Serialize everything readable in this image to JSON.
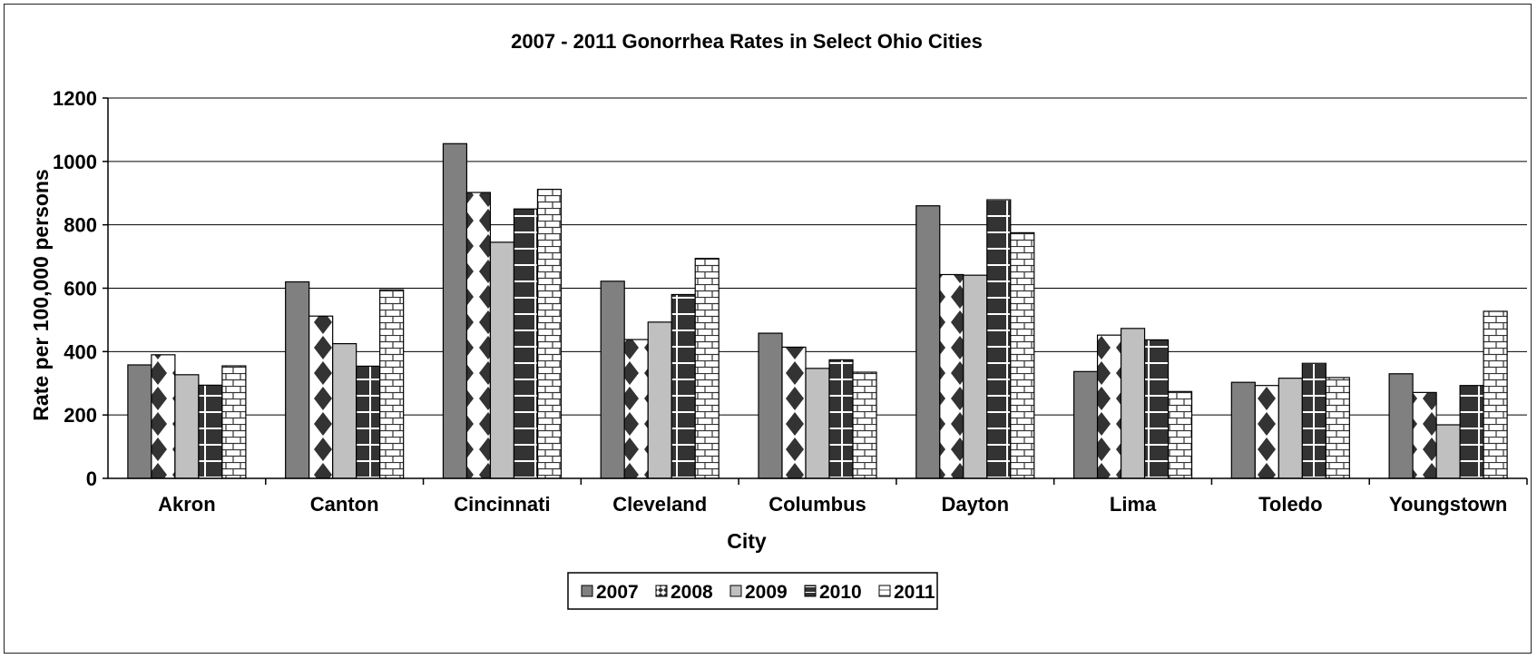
{
  "chart_data": {
    "type": "bar",
    "title": "2007 - 2011 Gonorrhea Rates in Select Ohio Cities",
    "xlabel": "City",
    "ylabel": "Rate per 100,000 persons",
    "ylim": [
      0,
      1200
    ],
    "yticks": [
      "0",
      "200",
      "400",
      "600",
      "800",
      "1000",
      "1200"
    ],
    "grid": true,
    "legend_position": "bottom",
    "categories": [
      "Akron",
      "Canton",
      "Cincinnati",
      "Cleveland",
      "Columbus",
      "Dayton",
      "Lima",
      "Toledo",
      "Youngstown"
    ],
    "series": [
      {
        "name": "2007",
        "pattern": "solid-dark",
        "color": "#808080",
        "values": [
          358,
          620,
          1056,
          622,
          458,
          860,
          337,
          303,
          330
        ]
      },
      {
        "name": "2008",
        "pattern": "diamonds",
        "color": "#333333",
        "values": [
          390,
          512,
          902,
          438,
          414,
          643,
          452,
          293,
          271
        ]
      },
      {
        "name": "2009",
        "pattern": "solid-light",
        "color": "#c0c0c0",
        "values": [
          327,
          425,
          745,
          493,
          347,
          641,
          473,
          316,
          169
        ]
      },
      {
        "name": "2010",
        "pattern": "dark-squares",
        "color": "#333333",
        "values": [
          294,
          354,
          850,
          580,
          374,
          879,
          437,
          363,
          293
        ]
      },
      {
        "name": "2011",
        "pattern": "bricks",
        "color": "#ffffff",
        "values": [
          355,
          595,
          912,
          694,
          335,
          775,
          274,
          318,
          527
        ]
      }
    ]
  }
}
